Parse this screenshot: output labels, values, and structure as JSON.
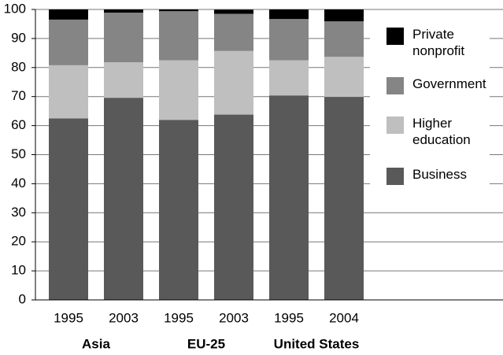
{
  "chart_data": {
    "type": "stacked_bar",
    "categories": [
      "1995",
      "2003",
      "1995",
      "2003",
      "1995",
      "2004"
    ],
    "groups": [
      "Asia",
      "EU-25",
      "United States"
    ],
    "series": [
      {
        "name": "Business",
        "color": "#595959",
        "values": [
          62.5,
          69.6,
          62.0,
          63.8,
          70.4,
          69.9
        ]
      },
      {
        "name": "Higher education",
        "color": "#bfbfbf",
        "values": [
          18.3,
          12.2,
          20.5,
          21.9,
          12.1,
          13.8
        ]
      },
      {
        "name": "Government",
        "color": "#858585",
        "values": [
          15.7,
          17.1,
          16.9,
          12.8,
          14.2,
          12.2
        ]
      },
      {
        "name": "Private nonprofit",
        "color": "#000000",
        "values": [
          3.5,
          1.1,
          0.6,
          1.4,
          3.3,
          4.1
        ]
      }
    ],
    "ylim": [
      0,
      100
    ],
    "yticks": [
      0,
      10,
      20,
      30,
      40,
      50,
      60,
      70,
      80,
      90,
      100
    ],
    "grid": true
  }
}
